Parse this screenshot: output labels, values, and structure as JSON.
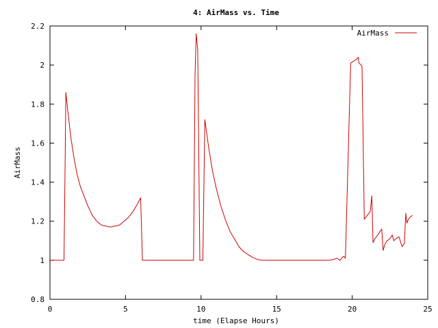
{
  "chart_data": {
    "type": "line",
    "title": "4: AirMass vs. Time",
    "xlabel": "time (Elapse Hours)",
    "ylabel": "AirMass",
    "xlim": [
      0,
      25
    ],
    "ylim": [
      0.8,
      2.2
    ],
    "x_ticks": [
      {
        "value": 0,
        "label": "0"
      },
      {
        "value": 5,
        "label": "5"
      },
      {
        "value": 10,
        "label": "10"
      },
      {
        "value": 15,
        "label": "15"
      },
      {
        "value": 20,
        "label": "20"
      },
      {
        "value": 25,
        "label": "25"
      }
    ],
    "y_ticks": [
      {
        "value": 0.8,
        "label": "0.8"
      },
      {
        "value": 1.0,
        "label": "1"
      },
      {
        "value": 1.2,
        "label": "1.2"
      },
      {
        "value": 1.4,
        "label": "1.4"
      },
      {
        "value": 1.6,
        "label": "1.6"
      },
      {
        "value": 1.8,
        "label": "1.8"
      },
      {
        "value": 2.0,
        "label": "2"
      },
      {
        "value": 2.2,
        "label": "2.2"
      }
    ],
    "grid": false,
    "legend_position": "top-right",
    "series": [
      {
        "name": "AirMass",
        "color": "#cc0000",
        "x": [
          0.0,
          0.93,
          1.0,
          1.05,
          1.2,
          1.4,
          1.6,
          1.8,
          2.0,
          2.2,
          2.5,
          2.8,
          3.1,
          3.4,
          3.7,
          4.0,
          4.3,
          4.6,
          4.9,
          5.2,
          5.5,
          5.8,
          6.0,
          6.12,
          9.5,
          9.6,
          9.68,
          9.78,
          9.92,
          10.0,
          10.12,
          10.25,
          10.5,
          10.75,
          11.0,
          11.3,
          11.6,
          11.9,
          12.2,
          12.5,
          12.8,
          13.1,
          13.4,
          13.7,
          14.0,
          14.4,
          15.0,
          16.0,
          17.0,
          18.0,
          18.5,
          18.8,
          19.0,
          19.2,
          19.35,
          19.45,
          19.55,
          19.9,
          20.1,
          20.3,
          20.4,
          20.45,
          20.6,
          20.65,
          20.8,
          21.0,
          21.2,
          21.3,
          21.38,
          21.5,
          21.7,
          21.95,
          22.05,
          22.15,
          22.3,
          22.5,
          22.65,
          22.75,
          22.9,
          23.1,
          23.3,
          23.45,
          23.55,
          23.62,
          23.72,
          23.82,
          24.0
        ],
        "y": [
          1.0,
          1.0,
          1.48,
          1.86,
          1.75,
          1.62,
          1.52,
          1.44,
          1.38,
          1.34,
          1.28,
          1.23,
          1.2,
          1.18,
          1.175,
          1.17,
          1.175,
          1.18,
          1.2,
          1.22,
          1.25,
          1.29,
          1.32,
          1.0,
          1.0,
          1.95,
          2.16,
          2.08,
          1.0,
          1.0,
          1.0,
          1.72,
          1.58,
          1.46,
          1.37,
          1.28,
          1.21,
          1.15,
          1.11,
          1.07,
          1.045,
          1.03,
          1.015,
          1.005,
          1.0,
          1.0,
          1.0,
          1.0,
          1.0,
          1.0,
          1.0,
          1.005,
          1.01,
          1.0,
          1.015,
          1.02,
          1.01,
          2.01,
          2.02,
          2.03,
          2.04,
          2.01,
          2.0,
          1.99,
          1.21,
          1.23,
          1.25,
          1.33,
          1.09,
          1.11,
          1.13,
          1.16,
          1.05,
          1.08,
          1.1,
          1.11,
          1.13,
          1.1,
          1.11,
          1.12,
          1.07,
          1.085,
          1.24,
          1.19,
          1.21,
          1.22,
          1.23
        ]
      }
    ]
  }
}
